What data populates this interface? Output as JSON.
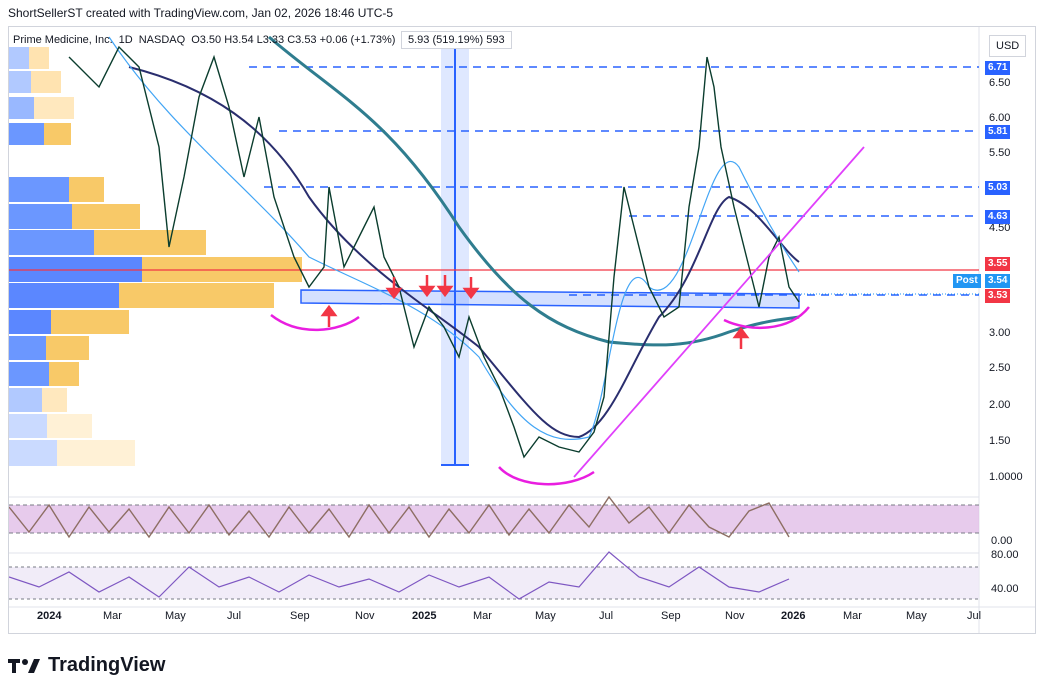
{
  "header": {
    "text": "ShortSellerST created with TradingView.com, Jan 02, 2026 18:46 UTC-5"
  },
  "symbol": {
    "name": "Prime Medicine, Inc.",
    "interval": "1D",
    "exchange": "NASDAQ",
    "ohlc": "O3.50  H3.54  L3.33  C3.53  +0.06 (+1.73%)"
  },
  "measure_label": "5.93 (519.19%) 593",
  "currency": "USD",
  "price_axis": [
    "6.50",
    "6.00",
    "5.50",
    "4.50",
    "3.00",
    "2.50",
    "2.00",
    "1.50",
    "1.0000"
  ],
  "price_tags": [
    {
      "value": "6.71",
      "color": "#2962ff"
    },
    {
      "value": "5.81",
      "color": "#2962ff"
    },
    {
      "value": "5.03",
      "color": "#2962ff"
    },
    {
      "value": "4.63",
      "color": "#2962ff"
    },
    {
      "value": "3.55",
      "color": "#f23645"
    },
    {
      "value": "3.54",
      "color": "#2196f3"
    },
    {
      "value": "3.53",
      "color": "#f23645"
    }
  ],
  "post_label": "Post",
  "osc1_axis": [
    "0.00"
  ],
  "osc2_axis": [
    "80.00",
    "40.00"
  ],
  "time_axis": [
    "2024",
    "Mar",
    "May",
    "Jul",
    "Sep",
    "Nov",
    "2025",
    "Mar",
    "May",
    "Jul",
    "Sep",
    "Nov",
    "2026",
    "Mar",
    "May",
    "Jul"
  ],
  "footer": {
    "brand": "TradingView"
  },
  "colors": {
    "up": "#0b3d2e",
    "ma_dark": "#2a2e6e",
    "ma_teal": "#2f7d8f",
    "ma_light": "#42a5f5",
    "trend": "#e040fb",
    "level": "#2962ff",
    "resistance": "#f23645"
  }
}
